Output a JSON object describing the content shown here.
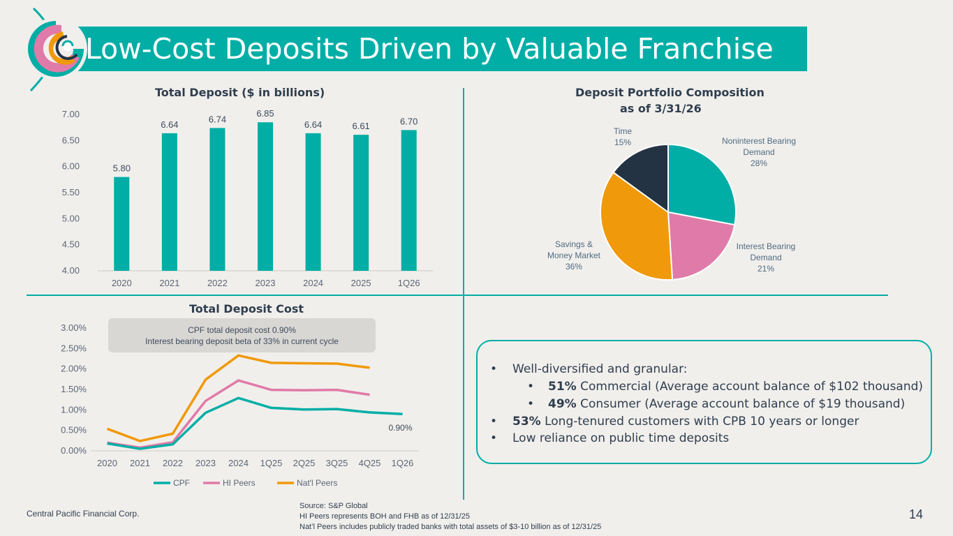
{
  "header": {
    "title": "Low-Cost Deposits Driven by Valuable Franchise"
  },
  "colors": {
    "teal": "#00aea6",
    "pink": "#e07aa8",
    "orange": "#f0990a",
    "navy": "#233344",
    "text": "#3b4a5a"
  },
  "callout": {
    "line1": "CPF total deposit cost 0.90%",
    "line2": "Interest bearing deposit beta of 33% in current cycle"
  },
  "bullets": {
    "b1_text": "Well-diversified and granular:",
    "b1_colon": ":",
    "s1_bold": "51%",
    "s1_text": " Commercial (Average account balance of $102 thousand)",
    "s2_bold": "49%",
    "s2_text": " Consumer (Average account balance of $19 thousand)",
    "b2_bold": "53%",
    "b2_text": " Long-tenured customers with CPB 10 years or longer",
    "b3_text": "Low reliance on public time deposits",
    "marker": "•"
  },
  "footer": {
    "company": "Central Pacific Financial Corp.",
    "source1": "Source: S&P Global",
    "source2": "HI Peers represents BOH and FHB as of 12/31/25",
    "source3": "Nat’l Peers includes publicly traded banks with total assets of $3-10 billion as of 12/31/25",
    "page": "14"
  },
  "chart_data": [
    {
      "type": "bar",
      "title": "Total Deposit ($ in billions)",
      "categories": [
        "2020",
        "2021",
        "2022",
        "2023",
        "2024",
        "2025",
        "1Q26"
      ],
      "values": [
        5.8,
        6.64,
        6.74,
        6.85,
        6.64,
        6.61,
        6.7
      ],
      "value_labels": [
        "5.80",
        "6.64",
        "6.74",
        "6.85",
        "6.64",
        "6.61",
        "6.70"
      ],
      "ylim": [
        4.0,
        7.0
      ],
      "yticks": [
        4.0,
        4.5,
        5.0,
        5.5,
        6.0,
        6.5,
        7.0
      ],
      "ytick_labels": [
        "4.00",
        "4.50",
        "5.00",
        "5.50",
        "6.00",
        "6.50",
        "7.00"
      ],
      "grid": false,
      "color": "#00aea6"
    },
    {
      "type": "pie",
      "title": "Deposit Portfolio Composition",
      "subtitle": "as of 3/31/26",
      "slices": [
        {
          "label_lines": [
            "Noninterest Bearing",
            "Demand"
          ],
          "pct_label": "28%",
          "value": 28,
          "color": "#00aea6"
        },
        {
          "label_lines": [
            "Interest Bearing",
            "Demand"
          ],
          "pct_label": "21%",
          "value": 21,
          "color": "#e07aa8"
        },
        {
          "label_lines": [
            "Savings &",
            "Money Market"
          ],
          "pct_label": "36%",
          "value": 36,
          "color": "#f0990a"
        },
        {
          "label_lines": [
            "Time"
          ],
          "pct_label": "15%",
          "value": 15,
          "color": "#233344"
        }
      ]
    },
    {
      "type": "line",
      "title": "Total Deposit Cost",
      "categories": [
        "2020",
        "2021",
        "2022",
        "2023",
        "2024",
        "1Q25",
        "2Q25",
        "3Q25",
        "4Q25",
        "1Q26"
      ],
      "ylim": [
        0,
        3.0
      ],
      "yticks": [
        0,
        0.5,
        1.0,
        1.5,
        2.0,
        2.5,
        3.0
      ],
      "ytick_labels": [
        "0.00%",
        "0.50%",
        "1.00%",
        "1.50%",
        "2.00%",
        "2.50%",
        "3.00%"
      ],
      "legend_position": "bottom",
      "series": [
        {
          "name": "CPF",
          "color": "#00aea6",
          "values": [
            0.18,
            0.05,
            0.16,
            0.93,
            1.29,
            1.05,
            1.01,
            1.02,
            0.94,
            0.9
          ]
        },
        {
          "name": "HI Peers",
          "color": "#e07aa8",
          "values": [
            0.2,
            0.08,
            0.21,
            1.22,
            1.72,
            1.49,
            1.48,
            1.49,
            1.37,
            null
          ]
        },
        {
          "name": "Nat'l Peers",
          "color": "#f0990a",
          "values": [
            0.54,
            0.24,
            0.42,
            1.74,
            2.33,
            2.15,
            2.14,
            2.13,
            2.03,
            null
          ]
        }
      ],
      "annotation": "0.90%"
    }
  ]
}
